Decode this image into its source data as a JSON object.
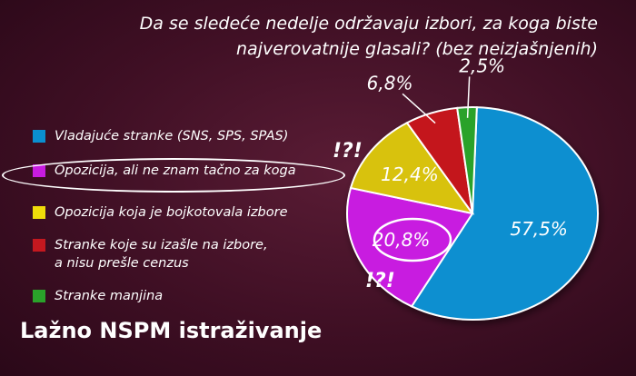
{
  "chart_data": {
    "type": "pie",
    "title": "Da se sledeće nedelje održavaju izbori, za koga biste najverovatnije glasali? (bez neizjašnjenih)",
    "slices": [
      {
        "label": "Vladajuće stranke (SNS, SPS, SPAS)",
        "value": 57.5,
        "display": "57,5%",
        "color": "#0a8fd0"
      },
      {
        "label": "Opozicija, ali ne znam tačno za koga",
        "value": 20.8,
        "display": "20,8%",
        "color": "#c81ce0"
      },
      {
        "label": "Opozicija koja je bojkotovala izbore",
        "value": 12.4,
        "display": "12,4%",
        "color": "#d8c20a"
      },
      {
        "label": "Stranke koje su izašle na izbore, a nisu prešle cenzus",
        "value": 6.8,
        "display": "6,8%",
        "color": "#c4181f"
      },
      {
        "label": "Stranke manjina",
        "value": 2.5,
        "display": "2,5%",
        "color": "#2aa22a"
      }
    ],
    "legend_position": "left"
  },
  "title_line1": "Da se sledeće nedelje održavaju izbori, za koga biste",
  "title_line2": "najverovatnije glasali? (bez neizjašnjenih)",
  "legend": [
    {
      "line1": "Vladajuće stranke (SNS, SPS, SPAS)",
      "line2": "",
      "color": "#0a8fd0"
    },
    {
      "line1": "Opozicija, ali ne znam tačno za koga",
      "line2": "",
      "color": "#c81ce0"
    },
    {
      "line1": "Opozicija koja je bojkotovala izbore",
      "line2": "",
      "color": "#f0dc0a"
    },
    {
      "line1": "Stranke koje su izašle na izbore,",
      "line2": "a nisu prešle cenzus",
      "color": "#c4181f"
    },
    {
      "line1": "Stranke manjina",
      "line2": "",
      "color": "#2aa22a"
    }
  ],
  "annotations": {
    "mark_top": "!?!",
    "mark_bottom": "!?!"
  },
  "caption": "Lažno NSPM istraživanje"
}
